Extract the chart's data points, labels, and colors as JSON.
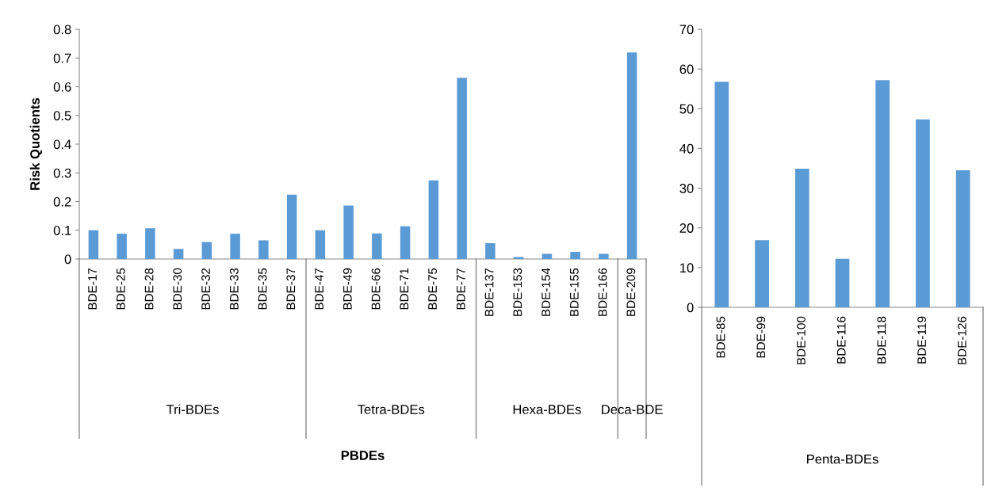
{
  "chart_data": [
    {
      "type": "bar",
      "ylabel": "Risk Quotients",
      "xlabel": "PBDEs",
      "categories": [
        "BDE-17",
        "BDE-25",
        "BDE-28",
        "BDE-30",
        "BDE-32",
        "BDE-33",
        "BDE-35",
        "BDE-37",
        "BDE-47",
        "BDE-49",
        "BDE-66",
        "BDE-71",
        "BDE-75",
        "BDE-77",
        "BDE-137",
        "BDE-153",
        "BDE-154",
        "BDE-155",
        "BDE-166",
        "BDE-209"
      ],
      "values": [
        0.1,
        0.088,
        0.107,
        0.035,
        0.059,
        0.088,
        0.065,
        0.224,
        0.1,
        0.186,
        0.089,
        0.114,
        0.274,
        0.631,
        0.055,
        0.007,
        0.018,
        0.025,
        0.018,
        0.719
      ],
      "color": "#5b9bd5",
      "ylim": [
        0,
        0.8
      ],
      "yticks": [
        {
          "value": 0,
          "label": "0"
        },
        0.1,
        0.2,
        0.3,
        0.4,
        0.5,
        0.6,
        0.7,
        0.8
      ],
      "grid": false,
      "legend": false,
      "annotations": [
        "Tri-BDEs",
        "Tetra-BDEs",
        "Hexa-BDEs",
        "Deca-BDE"
      ]
    },
    {
      "type": "bar",
      "xlabel": "Penta-BDEs",
      "categories": [
        "BDE-85",
        "BDE-99",
        "BDE-100",
        "BDE-116",
        "BDE-118",
        "BDE-119",
        "BDE-126"
      ],
      "values": [
        56.8,
        16.9,
        34.9,
        12.2,
        57.2,
        47.3,
        34.5
      ],
      "color": "#5b9bd5",
      "ylim": [
        0,
        70
      ],
      "yticks": [
        0,
        10,
        20,
        30,
        40,
        50,
        60,
        70
      ],
      "grid": false,
      "legend": false
    }
  ]
}
